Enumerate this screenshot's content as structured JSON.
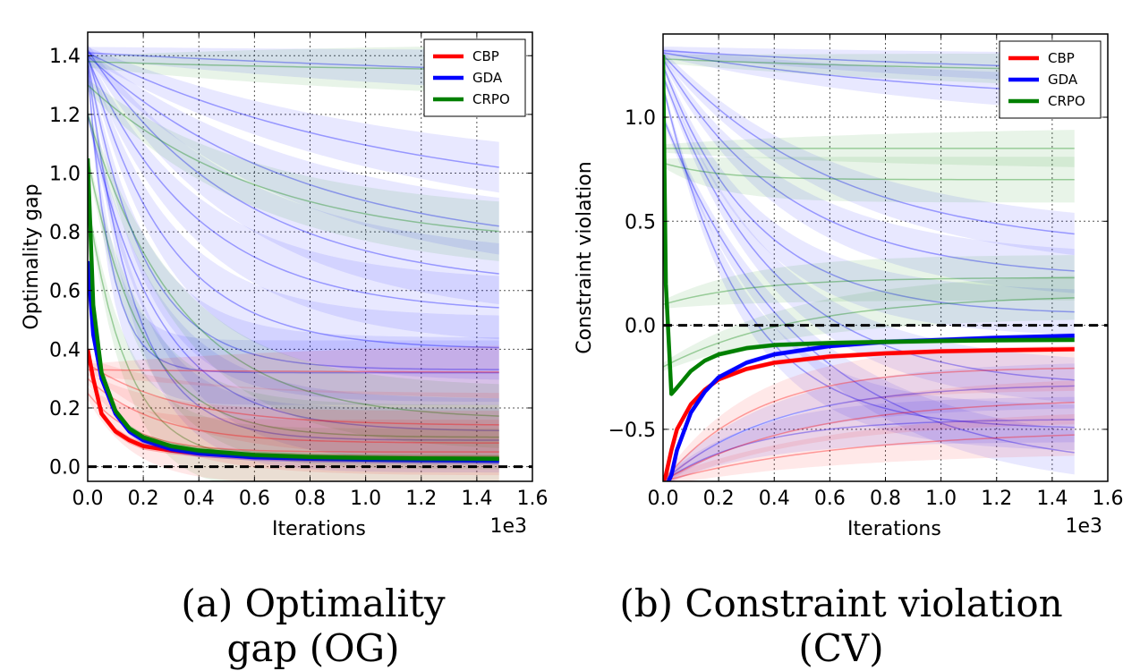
{
  "chart_data": [
    {
      "type": "line",
      "caption": "(a) Optimality gap (OG)",
      "xlabel": "Iterations",
      "ylabel": "Optimality gap",
      "x_multiplier_label": "1e3",
      "xlim": [
        0.0,
        1.6
      ],
      "ylim": [
        -0.05,
        1.48
      ],
      "xticks": [
        "0.0",
        "0.2",
        "0.4",
        "0.6",
        "0.8",
        "1.0",
        "1.2",
        "1.4",
        "1.6"
      ],
      "yticks": [
        "0.0",
        "0.2",
        "0.4",
        "0.6",
        "0.8",
        "1.0",
        "1.2",
        "1.4"
      ],
      "reference_line": 0.0,
      "grid": true,
      "legend_position": "top-right",
      "legend": [
        "CBP",
        "GDA",
        "CRPO"
      ],
      "colors": {
        "CBP": "#ff0000",
        "GDA": "#0000ff",
        "CRPO": "#008000"
      },
      "x": [
        0.0,
        0.02,
        0.05,
        0.1,
        0.15,
        0.2,
        0.3,
        0.4,
        0.6,
        0.8,
        1.0,
        1.2,
        1.48
      ],
      "series": [
        {
          "name": "CBP",
          "values": [
            0.4,
            0.3,
            0.18,
            0.12,
            0.09,
            0.07,
            0.055,
            0.045,
            0.035,
            0.03,
            0.028,
            0.026,
            0.025
          ]
        },
        {
          "name": "GDA",
          "values": [
            0.7,
            0.45,
            0.3,
            0.18,
            0.12,
            0.09,
            0.06,
            0.045,
            0.032,
            0.027,
            0.024,
            0.022,
            0.02
          ]
        },
        {
          "name": "CRPO",
          "values": [
            1.05,
            0.55,
            0.32,
            0.19,
            0.13,
            0.1,
            0.07,
            0.055,
            0.04,
            0.033,
            0.03,
            0.028,
            0.027
          ]
        }
      ],
      "faint_runs": [
        {
          "color": "GDA",
          "start": 1.41,
          "end": 1.3,
          "rate": 0.5
        },
        {
          "color": "GDA",
          "start": 1.41,
          "end": 0.88,
          "rate": 0.9
        },
        {
          "color": "GDA",
          "start": 1.4,
          "end": 0.72,
          "rate": 1.3
        },
        {
          "color": "GDA",
          "start": 1.42,
          "end": 0.6,
          "rate": 1.8
        },
        {
          "color": "GDA",
          "start": 1.39,
          "end": 0.52,
          "rate": 2.5
        },
        {
          "color": "GDA",
          "start": 1.4,
          "end": 0.4,
          "rate": 3.5
        },
        {
          "color": "GDA",
          "start": 1.38,
          "end": 0.33,
          "rate": 5.0
        },
        {
          "color": "GDA",
          "start": 1.35,
          "end": 0.32,
          "rate": 12.0
        },
        {
          "color": "GDA",
          "start": 1.2,
          "end": 0.12,
          "rate": 4.0
        },
        {
          "color": "GDA",
          "start": 1.37,
          "end": 0.09,
          "rate": 6.0
        },
        {
          "color": "CRPO",
          "start": 1.38,
          "end": 1.34,
          "rate": 0.8
        },
        {
          "color": "CRPO",
          "start": 1.3,
          "end": 0.75,
          "rate": 1.6
        },
        {
          "color": "CRPO",
          "start": 1.2,
          "end": 0.16,
          "rate": 3.0
        },
        {
          "color": "CRPO",
          "start": 1.05,
          "end": 0.1,
          "rate": 5.0
        },
        {
          "color": "CRPO",
          "start": 0.9,
          "end": 0.02,
          "rate": 7.0
        },
        {
          "color": "CBP",
          "start": 0.33,
          "end": 0.32,
          "rate": 1.0
        },
        {
          "color": "CBP",
          "start": 0.35,
          "end": 0.14,
          "rate": 3.0
        },
        {
          "color": "CBP",
          "start": 0.3,
          "end": 0.08,
          "rate": 4.0
        },
        {
          "color": "CBP",
          "start": 0.25,
          "end": 0.05,
          "rate": 6.0
        }
      ]
    },
    {
      "type": "line",
      "caption": "(b) Constraint violation (CV)",
      "xlabel": "Iterations",
      "ylabel": "Constraint violation",
      "x_multiplier_label": "1e3",
      "xlim": [
        0.0,
        1.6
      ],
      "ylim": [
        -0.75,
        1.4
      ],
      "xticks": [
        "0.0",
        "0.2",
        "0.4",
        "0.6",
        "0.8",
        "1.0",
        "1.2",
        "1.4",
        "1.6"
      ],
      "yticks": [
        "−0.5",
        "0.0",
        "0.5",
        "1.0"
      ],
      "ytick_values": [
        -0.5,
        0.0,
        0.5,
        1.0
      ],
      "reference_line": 0.0,
      "grid": true,
      "legend_position": "top-right",
      "legend": [
        "CBP",
        "GDA",
        "CRPO"
      ],
      "colors": {
        "CBP": "#ff0000",
        "GDA": "#0000ff",
        "CRPO": "#008000"
      },
      "x": [
        0.0,
        0.01,
        0.03,
        0.05,
        0.1,
        0.15,
        0.2,
        0.3,
        0.4,
        0.6,
        0.8,
        1.0,
        1.2,
        1.48
      ],
      "series": [
        {
          "name": "CBP",
          "values": [
            -0.75,
            -0.72,
            -0.6,
            -0.5,
            -0.38,
            -0.31,
            -0.26,
            -0.21,
            -0.18,
            -0.15,
            -0.135,
            -0.125,
            -0.12,
            -0.115
          ]
        },
        {
          "name": "GDA",
          "values": [
            -0.8,
            -0.78,
            -0.72,
            -0.6,
            -0.42,
            -0.32,
            -0.25,
            -0.18,
            -0.14,
            -0.1,
            -0.08,
            -0.07,
            -0.06,
            -0.05
          ]
        },
        {
          "name": "CRPO",
          "values": [
            1.3,
            0.2,
            -0.33,
            -0.3,
            -0.22,
            -0.17,
            -0.14,
            -0.11,
            -0.095,
            -0.085,
            -0.08,
            -0.075,
            -0.072,
            -0.07
          ]
        }
      ],
      "faint_runs": [
        {
          "color": "GDA",
          "start": 1.32,
          "end": 1.18,
          "rate": 0.6
        },
        {
          "color": "GDA",
          "start": 1.31,
          "end": 1.05,
          "rate": 0.9
        },
        {
          "color": "GDA",
          "start": 1.3,
          "end": 0.35,
          "rate": 1.6
        },
        {
          "color": "GDA",
          "start": 1.28,
          "end": 0.22,
          "rate": 2.2
        },
        {
          "color": "GDA",
          "start": 1.25,
          "end": 0.05,
          "rate": 3.0
        },
        {
          "color": "GDA",
          "start": 1.2,
          "end": -0.3,
          "rate": 2.5
        },
        {
          "color": "GDA",
          "start": 1.15,
          "end": -0.5,
          "rate": 3.5
        },
        {
          "color": "GDA",
          "start": 1.0,
          "end": -0.7,
          "rate": 2.0
        },
        {
          "color": "GDA",
          "start": -0.75,
          "end": -0.28,
          "rate": 2.5
        },
        {
          "color": "GDA",
          "start": -0.75,
          "end": -0.45,
          "rate": 3.0
        },
        {
          "color": "CRPO",
          "start": 1.28,
          "end": 1.2,
          "rate": 0.7
        },
        {
          "color": "CRPO",
          "start": 0.85,
          "end": 0.85,
          "rate": 1.0
        },
        {
          "color": "CRPO",
          "start": 0.78,
          "end": 0.7,
          "rate": 5.0
        },
        {
          "color": "CRPO",
          "start": 0.1,
          "end": 0.23,
          "rate": 3.0
        },
        {
          "color": "CRPO",
          "start": -0.2,
          "end": 0.15,
          "rate": 2.0
        },
        {
          "color": "CBP",
          "start": -0.75,
          "end": -0.35,
          "rate": 2.0
        },
        {
          "color": "CBP",
          "start": -0.75,
          "end": -0.5,
          "rate": 1.5
        },
        {
          "color": "CBP",
          "start": -0.75,
          "end": -0.2,
          "rate": 3.0
        }
      ]
    }
  ]
}
